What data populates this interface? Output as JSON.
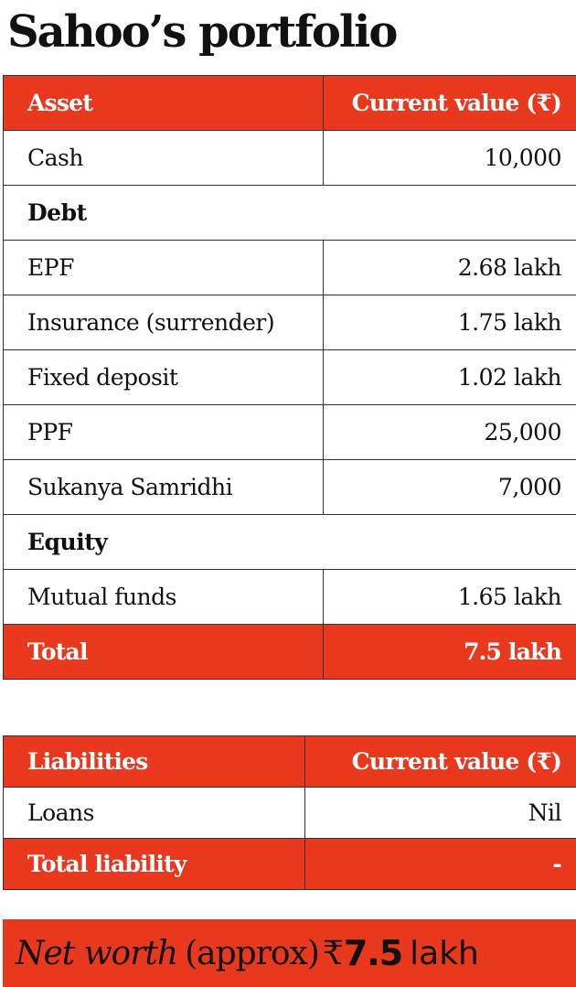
{
  "title": "Sahoo’s portfolio",
  "assets": {
    "header": {
      "asset": "Asset",
      "value": "Current value (₹)"
    },
    "rows": [
      {
        "label": "Cash",
        "value": "10,000"
      },
      {
        "section": "Debt"
      },
      {
        "label": "EPF",
        "value": "2.68 lakh"
      },
      {
        "label": "Insurance (surrender)",
        "value": "1.75 lakh"
      },
      {
        "label": "Fixed deposit",
        "value": "1.02 lakh"
      },
      {
        "label": "PPF",
        "value": "25,000"
      },
      {
        "label": "Sukanya Samridhi",
        "value": "7,000"
      },
      {
        "section": "Equity"
      },
      {
        "label": "Mutual funds",
        "value": "1.65 lakh"
      }
    ],
    "total": {
      "label": "Total",
      "value": "7.5 lakh"
    }
  },
  "liabilities": {
    "header": {
      "label": "Liabilities",
      "value": "Current value (₹)"
    },
    "rows": [
      {
        "label": "Loans",
        "value": "Nil"
      }
    ],
    "total": {
      "label": "Total liability",
      "value": "-"
    }
  },
  "net_worth": {
    "label": "Net worth",
    "qualifier": "(approx)",
    "currency": "₹",
    "amount": "7.5",
    "unit": "lakh"
  },
  "colors": {
    "accent": "#e8391f",
    "border": "#333333",
    "text": "#111111"
  }
}
